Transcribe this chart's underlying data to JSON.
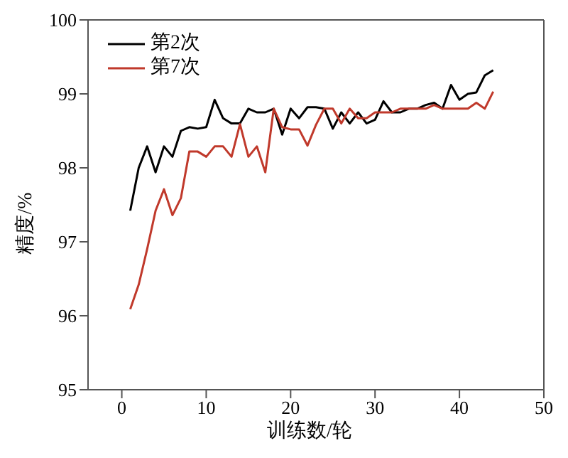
{
  "chart_data": {
    "type": "line",
    "xlabel": "训练数/轮",
    "ylabel": "精度/%",
    "x": [
      1,
      2,
      3,
      4,
      5,
      6,
      7,
      8,
      9,
      10,
      11,
      12,
      13,
      14,
      15,
      16,
      17,
      18,
      19,
      20,
      21,
      22,
      23,
      24,
      25,
      26,
      27,
      28,
      29,
      30,
      31,
      32,
      33,
      34,
      35,
      36,
      37,
      38,
      39,
      40,
      41,
      42,
      43,
      44
    ],
    "series": [
      {
        "name": "第2次",
        "color": "#000000",
        "values": [
          97.42,
          98.0,
          98.29,
          97.94,
          98.29,
          98.15,
          98.5,
          98.55,
          98.53,
          98.55,
          98.92,
          98.67,
          98.6,
          98.6,
          98.8,
          98.75,
          98.75,
          98.8,
          98.45,
          98.8,
          98.67,
          98.82,
          98.82,
          98.8,
          98.53,
          98.75,
          98.6,
          98.75,
          98.6,
          98.65,
          98.9,
          98.75,
          98.75,
          98.8,
          98.8,
          98.85,
          98.88,
          98.8,
          99.12,
          98.92,
          99.0,
          99.02,
          99.25,
          99.32
        ]
      },
      {
        "name": "第7次",
        "color": "#c0392b",
        "values": [
          96.09,
          96.42,
          96.9,
          97.42,
          97.71,
          97.36,
          97.59,
          98.22,
          98.22,
          98.15,
          98.29,
          98.29,
          98.15,
          98.59,
          98.15,
          98.29,
          97.94,
          98.8,
          98.55,
          98.52,
          98.52,
          98.3,
          98.58,
          98.8,
          98.8,
          98.6,
          98.8,
          98.67,
          98.67,
          98.75,
          98.75,
          98.75,
          98.8,
          98.8,
          98.8,
          98.8,
          98.85,
          98.8,
          98.8,
          98.8,
          98.8,
          98.88,
          98.8,
          99.03
        ]
      }
    ],
    "xlim": [
      -4,
      50
    ],
    "xticks": [
      0,
      10,
      20,
      30,
      40,
      50
    ],
    "ylim": [
      95,
      100
    ],
    "yticks": [
      95,
      96,
      97,
      98,
      99,
      100
    ],
    "legend": "top left",
    "grid": false,
    "marker": "none",
    "line_style": "solid"
  }
}
